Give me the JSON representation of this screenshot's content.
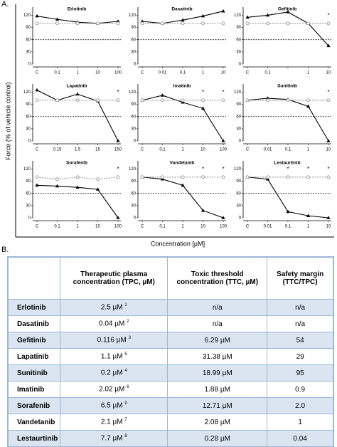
{
  "panel_a": "A.",
  "y_label": "Force (% of vehicle control)",
  "x_label": "Concentration [µM]",
  "chart_data": [
    {
      "type": "line",
      "title": "Erlotinib",
      "categories": [
        "C",
        "0.1",
        "1",
        "10",
        "100"
      ],
      "ylim": [
        0,
        140
      ],
      "yticks": [
        0,
        30,
        60,
        90,
        120
      ],
      "ref_line": 60,
      "series": [
        {
          "color": "#000000",
          "values": [
            118,
            110,
            103,
            100,
            105
          ]
        },
        {
          "color": "#999999",
          "dashed": true,
          "values": [
            100,
            100,
            100,
            100,
            100
          ]
        }
      ]
    },
    {
      "type": "line",
      "title": "Dasatinib",
      "categories": [
        "C",
        "0.01",
        "0.1",
        "1",
        "10"
      ],
      "ylim": [
        0,
        140
      ],
      "yticks": [
        0,
        30,
        60,
        90,
        120
      ],
      "ref_line": 60,
      "series": [
        {
          "color": "#000000",
          "values": [
            105,
            100,
            108,
            118,
            130
          ]
        },
        {
          "color": "#999999",
          "dashed": true,
          "values": [
            100,
            100,
            100,
            100,
            100
          ]
        }
      ]
    },
    {
      "type": "line",
      "title": "Gefitinib",
      "categories": [
        "C",
        "0.1",
        null,
        "1",
        "10"
      ],
      "ylim": [
        0,
        140
      ],
      "yticks": [
        0,
        30,
        60,
        90,
        120
      ],
      "ref_line": 60,
      "series": [
        {
          "color": "#000000",
          "values": [
            115,
            120,
            128,
            100,
            45
          ]
        },
        {
          "color": "#999999",
          "dashed": true,
          "values": [
            100,
            100,
            100,
            100,
            100
          ]
        }
      ],
      "annotations": [
        {
          "text": "*",
          "at": 4
        }
      ]
    },
    {
      "type": "line",
      "title": "Lapatinib",
      "categories": [
        "C",
        "0.15",
        "1.5",
        "15",
        "150"
      ],
      "ylim": [
        0,
        140
      ],
      "yticks": [
        0,
        30,
        60,
        90,
        120
      ],
      "ref_line": 60,
      "series": [
        {
          "color": "#000000",
          "values": [
            125,
            100,
            115,
            98,
            0
          ]
        },
        {
          "color": "#999999",
          "dashed": true,
          "values": [
            100,
            100,
            100,
            100,
            100
          ]
        }
      ],
      "annotations": [
        {
          "text": "*",
          "at": 4
        }
      ]
    },
    {
      "type": "line",
      "title": "Imatinib",
      "categories": [
        "C",
        "0.1",
        "1",
        "10",
        "100"
      ],
      "ylim": [
        0,
        140
      ],
      "yticks": [
        0,
        30,
        60,
        90,
        120
      ],
      "ref_line": 60,
      "series": [
        {
          "color": "#000000",
          "values": [
            100,
            112,
            95,
            80,
            0
          ]
        },
        {
          "color": "#999999",
          "dashed": true,
          "values": [
            100,
            100,
            100,
            100,
            100
          ]
        }
      ],
      "annotations": [
        {
          "text": "*",
          "at": 3
        },
        {
          "text": "*",
          "at": 4
        }
      ]
    },
    {
      "type": "line",
      "title": "Sunitinib",
      "categories": [
        "C",
        "0.01",
        "0.1",
        "1",
        "10"
      ],
      "ylim": [
        0,
        140
      ],
      "yticks": [
        0,
        30,
        60,
        90,
        120
      ],
      "ref_line": 60,
      "series": [
        {
          "color": "#000000",
          "values": [
            100,
            105,
            102,
            85,
            0
          ]
        },
        {
          "color": "#999999",
          "dashed": true,
          "values": [
            100,
            100,
            100,
            100,
            100
          ]
        }
      ],
      "annotations": [
        {
          "text": "*",
          "at": 4
        }
      ]
    },
    {
      "type": "line",
      "title": "Sorafenib",
      "categories": [
        "C",
        "0.1",
        "1",
        "10",
        "100"
      ],
      "ylim": [
        0,
        140
      ],
      "yticks": [
        0,
        30,
        60,
        90,
        120
      ],
      "ref_line": 60,
      "series": [
        {
          "color": "#000000",
          "values": [
            80,
            78,
            75,
            70,
            0
          ]
        },
        {
          "color": "#999999",
          "dashed": true,
          "values": [
            100,
            95,
            100,
            95,
            100
          ]
        }
      ],
      "annotations": [
        {
          "text": "*",
          "at": 4
        }
      ]
    },
    {
      "type": "line",
      "title": "Vandetanib",
      "categories": [
        "C",
        "0.1",
        "1",
        "10",
        "100"
      ],
      "ylim": [
        0,
        140
      ],
      "yticks": [
        0,
        30,
        60,
        90,
        120
      ],
      "ref_line": 60,
      "series": [
        {
          "color": "#000000",
          "values": [
            100,
            95,
            80,
            18,
            0
          ]
        },
        {
          "color": "#999999",
          "dashed": true,
          "values": [
            100,
            100,
            100,
            100,
            100
          ]
        }
      ],
      "annotations": [
        {
          "text": "*",
          "at": 3
        },
        {
          "text": "*",
          "at": 4
        }
      ]
    },
    {
      "type": "line",
      "title": "Lestaurtinib",
      "categories": [
        "C",
        "0.01",
        "0.1",
        "1",
        "10"
      ],
      "ylim": [
        0,
        140
      ],
      "yticks": [
        0,
        30,
        60,
        90,
        120
      ],
      "ref_line": 60,
      "series": [
        {
          "color": "#000000",
          "values": [
            100,
            95,
            15,
            5,
            0
          ]
        },
        {
          "color": "#999999",
          "dashed": true,
          "values": [
            100,
            100,
            100,
            100,
            100
          ]
        }
      ],
      "annotations": [
        {
          "text": "*",
          "at": 2
        },
        {
          "text": "*",
          "at": 3
        },
        {
          "text": "*",
          "at": 4
        }
      ]
    }
  ],
  "panel_b": "B.",
  "table": {
    "headers": [
      "Therapeutic plasma concentration (TPC, µM)",
      "Toxic threshold concentration (TTC, µM)",
      "Safety margin (TTC/TPC)"
    ],
    "rows": [
      {
        "drug": "Erlotinib",
        "tpc": "2.5 µM",
        "ref": "1",
        "ttc": "n/a",
        "margin": "n/a"
      },
      {
        "drug": "Dasatinib",
        "tpc": "0.04 µM",
        "ref": "2",
        "ttc": "n/a",
        "margin": "n/a"
      },
      {
        "drug": "Gefitinib",
        "tpc": "0.116 µM",
        "ref": "3",
        "ttc": "6.29 µM",
        "margin": "54"
      },
      {
        "drug": "Lapatinib",
        "tpc": "1.1 µM",
        "ref": "5",
        "ttc": "31.38 µM",
        "margin": "29"
      },
      {
        "drug": "Sunitinib",
        "tpc": "0.2 µM",
        "ref": "4",
        "ttc": "18.99 µM",
        "margin": "95"
      },
      {
        "drug": "Imatinib",
        "tpc": "2.02 µM",
        "ref": "6",
        "ttc": "1.88 µM",
        "margin": "0.9"
      },
      {
        "drug": "Sorafenib",
        "tpc": "6.5 µM",
        "ref": "9",
        "ttc": "12.71 µM",
        "margin": "2.0"
      },
      {
        "drug": "Vandetanib",
        "tpc": "2.1 µM",
        "ref": "7",
        "ttc": "2.08 µM",
        "margin": "1"
      },
      {
        "drug": "Lestaurtinib",
        "tpc": "7.7 µM",
        "ref": "8",
        "ttc": "0.28 µM",
        "margin": "0.04"
      }
    ]
  }
}
